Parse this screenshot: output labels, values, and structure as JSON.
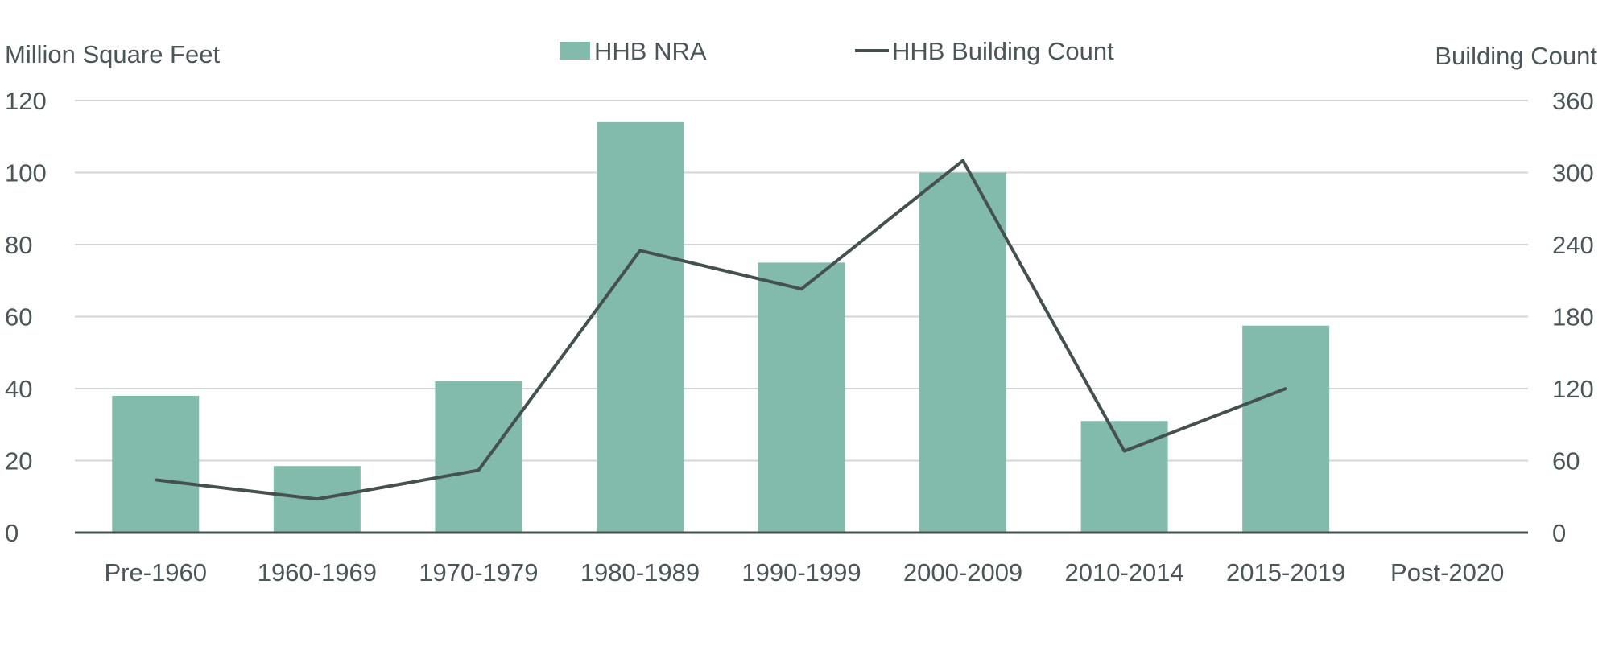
{
  "chart_data": {
    "type": "bar",
    "categories": [
      "Pre-1960",
      "1960-1969",
      "1970-1979",
      "1980-1989",
      "1990-1999",
      "2000-2009",
      "2010-2014",
      "2015-2019",
      "Post-2020"
    ],
    "series": [
      {
        "name": "HHB NRA",
        "type": "bar",
        "axis": "left",
        "values": [
          38,
          18.5,
          42,
          114,
          75,
          100,
          31,
          57.5,
          0
        ]
      },
      {
        "name": "HHB Building Count",
        "type": "line",
        "axis": "right",
        "values": [
          44,
          28,
          52,
          235,
          203,
          310,
          68,
          120,
          null
        ]
      }
    ],
    "ylabel": "Million Square Feet",
    "y2label": "Building Count",
    "ylim": [
      0,
      120
    ],
    "y2lim": [
      0,
      360
    ],
    "yticks": [
      "0",
      "20",
      "40",
      "60",
      "80",
      "100",
      "120"
    ],
    "y2ticks": [
      "0",
      "60",
      "120",
      "180",
      "240",
      "300",
      "360"
    ],
    "grid": true,
    "legend_position": "top-center",
    "colors": {
      "bar": "#82bbac",
      "line": "#45514f",
      "grid": "#d3d6d6",
      "axis": "#45514f",
      "text": "#4a5658"
    }
  }
}
